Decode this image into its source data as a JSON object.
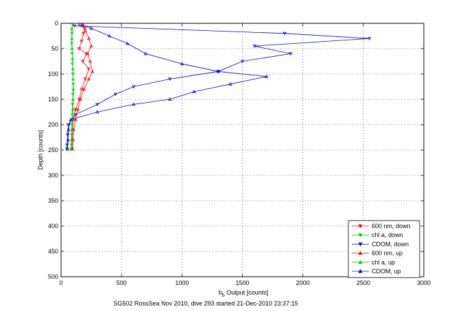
{
  "chart_data": {
    "type": "scatter",
    "title": "",
    "xlabel_main": "b",
    "xlabel_sub": "b",
    "xlabel_rest": " Output [counts]",
    "ylabel": "Depth [counts]",
    "caption": "SG502 RossSea Nov 2010, dive 293 started 21-Dec-2010 23:37:15",
    "xlim": [
      0,
      3000
    ],
    "ylim": [
      0,
      500
    ],
    "y_reversed": true,
    "grid": true,
    "legend_position": "bottom-right",
    "xticks": [
      "0",
      "500",
      "1000",
      "1500",
      "2000",
      "2500",
      "3000"
    ],
    "yticks": [
      "0",
      "50",
      "100",
      "150",
      "200",
      "250",
      "300",
      "350",
      "400",
      "450",
      "500"
    ],
    "series": [
      {
        "name": "600 nm, down",
        "color": "#ff0000",
        "marker": "triangle-down",
        "connected": true,
        "points": [
          [
            150,
            2
          ],
          [
            200,
            10
          ],
          [
            185,
            20
          ],
          [
            170,
            35
          ],
          [
            150,
            50
          ],
          [
            210,
            60
          ],
          [
            180,
            75
          ],
          [
            230,
            90
          ],
          [
            200,
            110
          ],
          [
            170,
            130
          ],
          [
            150,
            150
          ],
          [
            120,
            170
          ],
          [
            100,
            190
          ],
          [
            95,
            210
          ],
          [
            92,
            230
          ],
          [
            90,
            248
          ]
        ]
      },
      {
        "name": "chl a, down",
        "color": "#00cc00",
        "marker": "triangle-down",
        "connected": true,
        "points": [
          [
            95,
            2
          ],
          [
            90,
            20
          ],
          [
            88,
            40
          ],
          [
            92,
            60
          ],
          [
            95,
            80
          ],
          [
            98,
            100
          ],
          [
            100,
            120
          ],
          [
            98,
            140
          ],
          [
            95,
            160
          ],
          [
            92,
            180
          ],
          [
            90,
            200
          ],
          [
            88,
            220
          ],
          [
            86,
            240
          ],
          [
            85,
            248
          ]
        ]
      },
      {
        "name": "CDOM, down",
        "color": "#0000cc",
        "marker": "triangle-down",
        "connected": true,
        "points": [
          [
            110,
            5
          ],
          [
            1850,
            20
          ],
          [
            2550,
            30
          ],
          [
            1600,
            45
          ],
          [
            1900,
            60
          ],
          [
            1500,
            75
          ],
          [
            1300,
            95
          ],
          [
            900,
            110
          ],
          [
            600,
            125
          ],
          [
            450,
            140
          ],
          [
            300,
            160
          ],
          [
            120,
            180
          ],
          [
            60,
            200
          ],
          [
            55,
            220
          ],
          [
            50,
            240
          ],
          [
            48,
            248
          ]
        ]
      },
      {
        "name": "600 nm, up",
        "color": "#ff0000",
        "marker": "triangle-up",
        "connected": true,
        "points": [
          [
            95,
            248
          ],
          [
            100,
            230
          ],
          [
            105,
            210
          ],
          [
            120,
            190
          ],
          [
            140,
            170
          ],
          [
            160,
            150
          ],
          [
            190,
            130
          ],
          [
            230,
            110
          ],
          [
            260,
            95
          ],
          [
            240,
            75
          ],
          [
            220,
            60
          ],
          [
            250,
            45
          ],
          [
            230,
            30
          ],
          [
            200,
            15
          ],
          [
            170,
            4
          ]
        ]
      },
      {
        "name": "chl a, up",
        "color": "#00cc00",
        "marker": "triangle-up",
        "connected": true,
        "points": [
          [
            88,
            248
          ],
          [
            90,
            230
          ],
          [
            92,
            210
          ],
          [
            95,
            190
          ],
          [
            98,
            170
          ],
          [
            100,
            150
          ],
          [
            102,
            130
          ],
          [
            100,
            110
          ],
          [
            98,
            90
          ],
          [
            95,
            70
          ],
          [
            92,
            50
          ],
          [
            90,
            30
          ],
          [
            88,
            10
          ]
        ]
      },
      {
        "name": "CDOM, up",
        "color": "#0000cc",
        "marker": "triangle-up",
        "connected": true,
        "points": [
          [
            55,
            248
          ],
          [
            58,
            230
          ],
          [
            62,
            210
          ],
          [
            80,
            190
          ],
          [
            300,
            175
          ],
          [
            600,
            160
          ],
          [
            900,
            150
          ],
          [
            1100,
            135
          ],
          [
            1400,
            120
          ],
          [
            1700,
            105
          ],
          [
            1300,
            95
          ],
          [
            1000,
            80
          ],
          [
            700,
            60
          ],
          [
            550,
            40
          ],
          [
            400,
            25
          ],
          [
            250,
            10
          ],
          [
            180,
            3
          ]
        ]
      }
    ]
  }
}
